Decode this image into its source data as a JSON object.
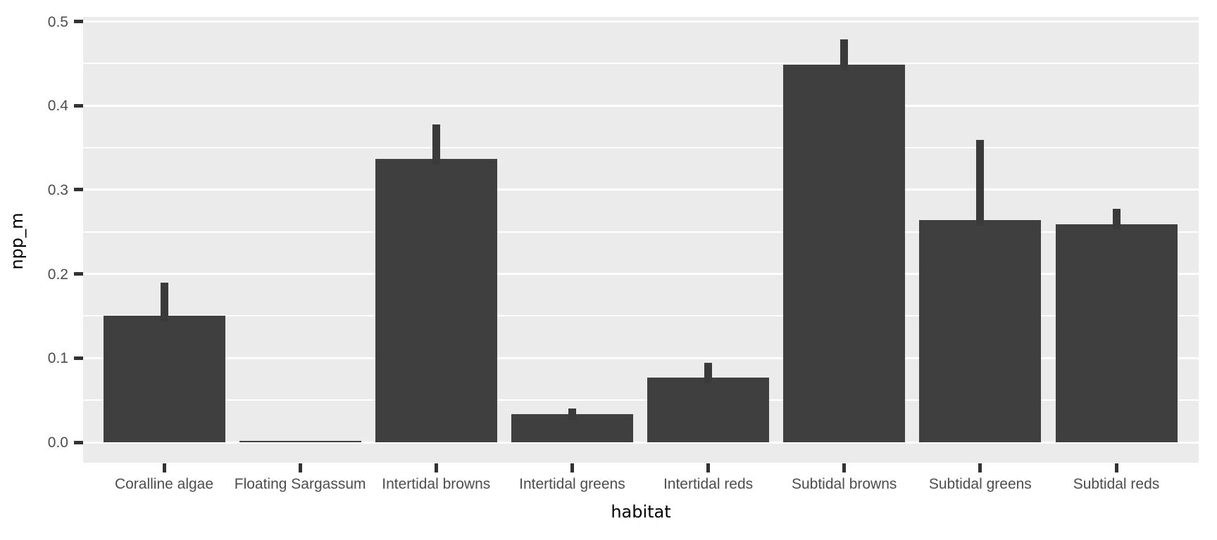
{
  "chart_data": {
    "type": "bar",
    "title": "",
    "xlabel": "habitat",
    "ylabel": "npp_m",
    "categories": [
      "Coralline algae",
      "Floating Sargassum",
      "Intertidal browns",
      "Intertidal greens",
      "Intertidal reds",
      "Subtidal browns",
      "Subtidal greens",
      "Subtidal reds"
    ],
    "values": [
      0.15,
      0.001,
      0.337,
      0.033,
      0.077,
      0.449,
      0.264,
      0.259
    ],
    "error_upper": [
      0.19,
      0.001,
      0.378,
      0.04,
      0.094,
      0.479,
      0.359,
      0.277
    ],
    "ylim": [
      0,
      0.5
    ],
    "y_ticks": [
      0.0,
      0.1,
      0.2,
      0.3,
      0.4,
      0.5
    ],
    "y_tick_labels": [
      "0.0",
      "0.1",
      "0.2",
      "0.3",
      "0.4",
      "0.5"
    ],
    "y_minor_ticks": [
      0.05,
      0.15,
      0.25,
      0.35,
      0.45
    ],
    "grid": "major-and-minor-white-on-grey",
    "legend": "none",
    "colors": {
      "bar_fill": "#3F3F3F",
      "error_bar": "#3A3A3A",
      "panel_background": "#EBEBEB",
      "gridline": "#FFFFFF",
      "tick_label": "#4D4D4D",
      "tick_mark": "#333333",
      "axis_title": "#000000",
      "page_background": "#FFFFFF"
    }
  }
}
